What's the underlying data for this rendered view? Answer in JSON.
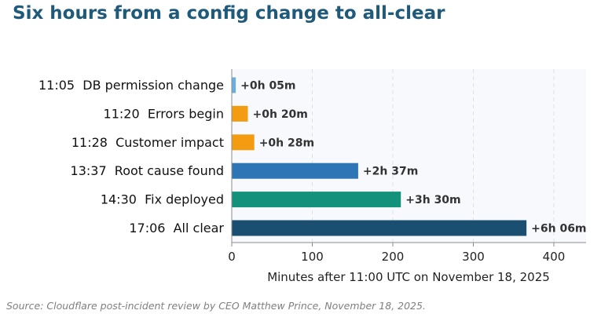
{
  "title": "Six hours from a config change to all-clear",
  "source": "Source: Cloudflare post-incident review by CEO Matthew Prince, November 18, 2025.",
  "chart_data": {
    "type": "bar",
    "orientation": "horizontal",
    "categories": [
      "11:05  DB permission change",
      "11:20  Errors begin",
      "11:28  Customer impact",
      "13:37  Root cause found",
      "14:30  Fix deployed",
      "17:06  All clear"
    ],
    "values": [
      5,
      20,
      28,
      157,
      210,
      366
    ],
    "data_labels": [
      "+0h 05m",
      "+0h 20m",
      "+0h 28m",
      "+2h 37m",
      "+3h 30m",
      "+6h 06m"
    ],
    "colors": [
      "#6aaee0",
      "#f39c12",
      "#f39c12",
      "#2e75b6",
      "#13917a",
      "#1b4f72"
    ],
    "xlabel": "Minutes after 11:00 UTC on November 18, 2025",
    "xlim": [
      0,
      440
    ],
    "xticks": [
      0,
      100,
      200,
      300,
      400
    ],
    "grid": "x-dashed",
    "legend": "none"
  }
}
